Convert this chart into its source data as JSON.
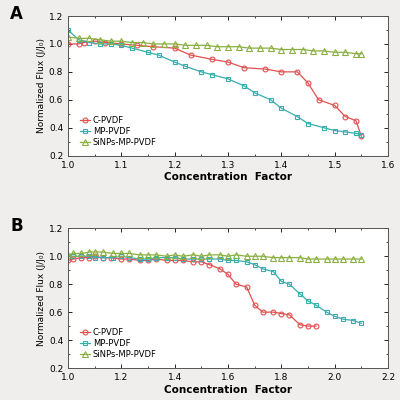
{
  "panel_A": {
    "title": "A",
    "xlabel": "Concentration  Factor",
    "ylabel": "Normalized Flux (J/J₀)",
    "xlim": [
      1.0,
      1.6
    ],
    "ylim": [
      0.2,
      1.2
    ],
    "xticks": [
      1.0,
      1.1,
      1.2,
      1.3,
      1.4,
      1.5,
      1.6
    ],
    "yticks": [
      0.2,
      0.4,
      0.6,
      0.8,
      1.0,
      1.2
    ],
    "C_PVDF_x": [
      1.0,
      1.02,
      1.03,
      1.05,
      1.07,
      1.1,
      1.13,
      1.16,
      1.2,
      1.23,
      1.27,
      1.3,
      1.33,
      1.37,
      1.4,
      1.43,
      1.45,
      1.47,
      1.5,
      1.52,
      1.54,
      1.55
    ],
    "C_PVDF_y": [
      1.0,
      1.0,
      1.01,
      1.02,
      1.01,
      1.0,
      0.99,
      0.98,
      0.97,
      0.92,
      0.89,
      0.87,
      0.83,
      0.82,
      0.8,
      0.8,
      0.72,
      0.6,
      0.56,
      0.48,
      0.45,
      0.34
    ],
    "MP_PVDF_x": [
      1.0,
      1.02,
      1.04,
      1.06,
      1.08,
      1.1,
      1.12,
      1.15,
      1.17,
      1.2,
      1.22,
      1.25,
      1.27,
      1.3,
      1.33,
      1.35,
      1.38,
      1.4,
      1.43,
      1.45,
      1.48,
      1.5,
      1.52,
      1.54,
      1.55
    ],
    "MP_PVDF_y": [
      1.1,
      1.03,
      1.01,
      1.0,
      1.0,
      0.99,
      0.97,
      0.94,
      0.92,
      0.87,
      0.84,
      0.8,
      0.78,
      0.75,
      0.7,
      0.65,
      0.6,
      0.54,
      0.48,
      0.43,
      0.4,
      0.38,
      0.37,
      0.36,
      0.35
    ],
    "SiNPs_x": [
      1.0,
      1.02,
      1.04,
      1.06,
      1.08,
      1.1,
      1.12,
      1.14,
      1.16,
      1.18,
      1.2,
      1.22,
      1.24,
      1.26,
      1.28,
      1.3,
      1.32,
      1.34,
      1.36,
      1.38,
      1.4,
      1.42,
      1.44,
      1.46,
      1.48,
      1.5,
      1.52,
      1.54,
      1.55
    ],
    "SiNPs_y": [
      1.05,
      1.04,
      1.04,
      1.03,
      1.02,
      1.02,
      1.01,
      1.01,
      1.0,
      1.0,
      1.0,
      0.99,
      0.99,
      0.99,
      0.98,
      0.98,
      0.98,
      0.97,
      0.97,
      0.97,
      0.96,
      0.96,
      0.96,
      0.95,
      0.95,
      0.94,
      0.94,
      0.93,
      0.93
    ]
  },
  "panel_B": {
    "title": "B",
    "xlabel": "Concentration  Factor",
    "ylabel": "Normalized Flux (J/J₀)",
    "xlim": [
      1.0,
      2.2
    ],
    "ylim": [
      0.2,
      1.2
    ],
    "xticks": [
      1.0,
      1.2,
      1.4,
      1.6,
      1.8,
      2.0,
      2.2
    ],
    "yticks": [
      0.2,
      0.4,
      0.6,
      0.8,
      1.0,
      1.2
    ],
    "C_PVDF_x": [
      1.0,
      1.02,
      1.05,
      1.08,
      1.1,
      1.13,
      1.16,
      1.2,
      1.23,
      1.27,
      1.3,
      1.33,
      1.37,
      1.4,
      1.43,
      1.47,
      1.5,
      1.53,
      1.57,
      1.6,
      1.63,
      1.67,
      1.7,
      1.73,
      1.77,
      1.8,
      1.83,
      1.87,
      1.9,
      1.93
    ],
    "C_PVDF_y": [
      0.97,
      0.98,
      0.99,
      0.99,
      1.0,
      0.99,
      0.99,
      0.98,
      0.98,
      0.97,
      0.97,
      0.98,
      0.97,
      0.97,
      0.97,
      0.96,
      0.96,
      0.94,
      0.91,
      0.87,
      0.8,
      0.78,
      0.65,
      0.6,
      0.6,
      0.59,
      0.58,
      0.51,
      0.5,
      0.5
    ],
    "MP_PVDF_x": [
      1.0,
      1.02,
      1.05,
      1.08,
      1.1,
      1.13,
      1.17,
      1.2,
      1.23,
      1.27,
      1.3,
      1.33,
      1.37,
      1.4,
      1.43,
      1.47,
      1.5,
      1.53,
      1.57,
      1.6,
      1.63,
      1.67,
      1.7,
      1.73,
      1.77,
      1.8,
      1.83,
      1.87,
      1.9,
      1.93,
      1.97,
      2.0,
      2.03,
      2.07,
      2.1
    ],
    "MP_PVDF_y": [
      1.0,
      1.0,
      1.0,
      1.0,
      0.99,
      0.99,
      0.99,
      1.0,
      0.99,
      0.98,
      0.98,
      0.99,
      0.99,
      0.99,
      0.98,
      0.98,
      0.98,
      0.98,
      0.98,
      0.97,
      0.97,
      0.96,
      0.94,
      0.91,
      0.89,
      0.82,
      0.8,
      0.73,
      0.68,
      0.65,
      0.6,
      0.57,
      0.55,
      0.54,
      0.52
    ],
    "SiNPs_x": [
      1.0,
      1.02,
      1.05,
      1.08,
      1.1,
      1.13,
      1.17,
      1.2,
      1.23,
      1.27,
      1.3,
      1.33,
      1.37,
      1.4,
      1.43,
      1.47,
      1.5,
      1.53,
      1.57,
      1.6,
      1.63,
      1.67,
      1.7,
      1.73,
      1.77,
      1.8,
      1.83,
      1.87,
      1.9,
      1.93,
      1.97,
      2.0,
      2.03,
      2.07,
      2.1
    ],
    "SiNPs_y": [
      1.01,
      1.02,
      1.02,
      1.03,
      1.03,
      1.03,
      1.02,
      1.02,
      1.02,
      1.01,
      1.01,
      1.01,
      1.0,
      1.01,
      1.0,
      1.01,
      1.0,
      1.01,
      1.01,
      1.0,
      1.01,
      1.0,
      1.0,
      1.0,
      0.99,
      0.99,
      0.99,
      0.99,
      0.98,
      0.98,
      0.98,
      0.98,
      0.98,
      0.98,
      0.98
    ]
  },
  "colors": {
    "C_PVDF": "#e05050",
    "MP_PVDF": "#3aadad",
    "SiNPs": "#8ab040"
  },
  "legend_labels": [
    "C-PVDF",
    "MP-PVDF",
    "SiNPs-MP-PVDF"
  ],
  "fig_bg": "#f0eeec"
}
